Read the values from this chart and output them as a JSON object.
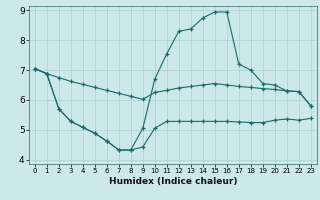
{
  "xlabel": "Humidex (Indice chaleur)",
  "bg_color": "#cce8e8",
  "grid_color": "#a8d0d0",
  "line_color": "#1a6b6b",
  "x_ticks": [
    0,
    1,
    2,
    3,
    4,
    5,
    6,
    7,
    8,
    9,
    10,
    11,
    12,
    13,
    14,
    15,
    16,
    17,
    18,
    19,
    20,
    21,
    22,
    23
  ],
  "y_ticks": [
    4,
    5,
    6,
    7,
    8,
    9
  ],
  "x_min": 0,
  "x_max": 23,
  "y_min": 4,
  "y_max": 9,
  "line1_x": [
    0,
    1,
    2,
    3,
    4,
    5,
    6,
    7,
    8,
    9,
    10,
    11,
    12,
    13,
    14,
    15,
    16,
    17,
    18,
    19,
    20,
    21,
    22,
    23
  ],
  "line1_y": [
    7.05,
    6.88,
    6.75,
    6.62,
    6.52,
    6.42,
    6.32,
    6.22,
    6.12,
    6.02,
    6.25,
    6.32,
    6.4,
    6.45,
    6.5,
    6.55,
    6.5,
    6.45,
    6.42,
    6.38,
    6.35,
    6.3,
    6.28,
    5.8
  ],
  "line2_x": [
    0,
    1,
    2,
    3,
    4,
    5,
    6,
    7,
    8,
    9,
    10,
    11,
    12,
    13,
    14,
    15,
    16,
    17,
    18,
    19,
    20,
    21,
    22,
    23
  ],
  "line2_y": [
    7.05,
    6.88,
    5.7,
    5.28,
    5.08,
    4.88,
    4.62,
    4.32,
    4.32,
    4.42,
    5.05,
    5.28,
    5.28,
    5.28,
    5.28,
    5.28,
    5.28,
    5.26,
    5.24,
    5.24,
    5.32,
    5.36,
    5.32,
    5.38
  ],
  "line3_x": [
    0,
    1,
    2,
    3,
    4,
    5,
    6,
    7,
    8,
    9,
    10,
    11,
    12,
    13,
    14,
    15,
    16,
    17,
    18,
    19,
    20,
    21,
    22,
    23
  ],
  "line3_y": [
    7.05,
    6.88,
    5.7,
    5.28,
    5.08,
    4.88,
    4.62,
    4.32,
    4.32,
    5.05,
    6.7,
    7.55,
    8.3,
    8.38,
    8.75,
    8.95,
    8.95,
    7.2,
    7.0,
    6.55,
    6.5,
    6.3,
    6.28,
    5.8
  ]
}
